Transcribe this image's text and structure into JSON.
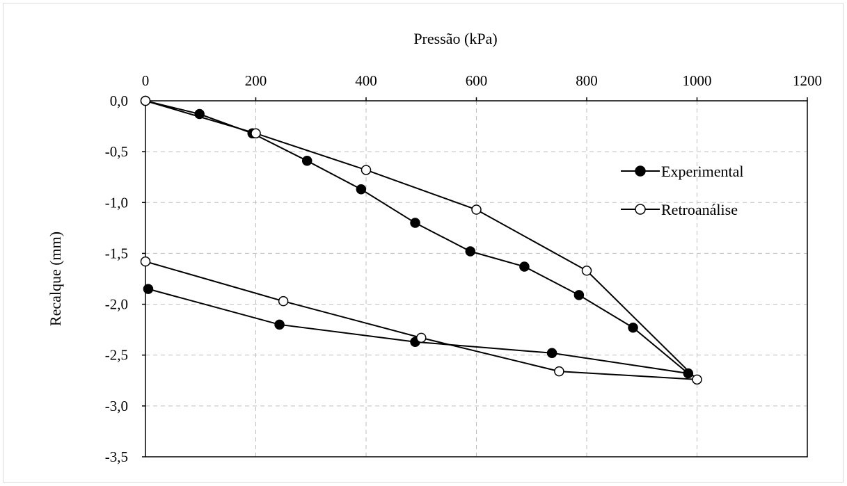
{
  "chart_data": {
    "type": "scatter",
    "title": "",
    "xlabel": "Pressão (kPa)",
    "ylabel": "Recalque (mm)",
    "xlim": [
      0,
      1200
    ],
    "ylim": [
      -3.5,
      0
    ],
    "x_ticks": [
      0,
      200,
      400,
      600,
      800,
      1000,
      1200
    ],
    "x_tick_labels": [
      "0",
      "200",
      "400",
      "600",
      "800",
      "1000",
      "1200"
    ],
    "y_ticks": [
      0,
      -0.5,
      -1,
      -1.5,
      -2,
      -2.5,
      -3,
      -3.5
    ],
    "y_tick_labels": [
      "0,0",
      "-0,5",
      "-1,0",
      "-1,5",
      "-2,0",
      "-2,5",
      "-3,0",
      "-3,5"
    ],
    "x_axis_position": "top",
    "grid": true,
    "legend_position": "right",
    "series": [
      {
        "name": "Experimental",
        "marker": "filled-circle",
        "color": "#000000",
        "x": [
          0,
          98,
          194,
          293,
          391,
          489,
          589,
          687,
          786,
          884,
          984,
          737,
          489,
          243,
          5
        ],
        "y": [
          0.0,
          -0.13,
          -0.32,
          -0.59,
          -0.87,
          -1.2,
          -1.48,
          -1.63,
          -1.91,
          -2.23,
          -2.68,
          -2.48,
          -2.37,
          -2.2,
          -1.85
        ]
      },
      {
        "name": "Retroanálise",
        "marker": "open-circle",
        "color": "#000000",
        "x": [
          0,
          200,
          400,
          600,
          800,
          1000,
          750,
          500,
          250,
          0
        ],
        "y": [
          0.0,
          -0.32,
          -0.68,
          -1.07,
          -1.67,
          -2.74,
          -2.66,
          -2.33,
          -1.97,
          -1.58
        ]
      }
    ]
  }
}
